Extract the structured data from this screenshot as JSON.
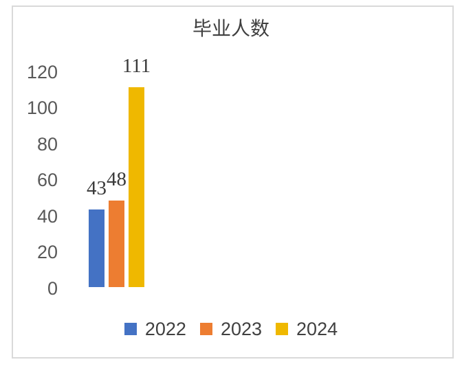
{
  "chart_data": {
    "type": "bar",
    "title": "毕业人数",
    "categories": [
      "2022",
      "2023",
      "2024"
    ],
    "series": [
      {
        "name": "2022",
        "value": 43,
        "color": "#4472C4"
      },
      {
        "name": "2023",
        "value": 48,
        "color": "#ED7D31"
      },
      {
        "name": "2024",
        "value": 111,
        "color": "#EFB800"
      }
    ],
    "data_labels": [
      "43",
      "48",
      "111"
    ],
    "xlabel": "",
    "ylabel": "",
    "ylim": [
      0,
      120
    ],
    "y_ticks": [
      120,
      100,
      80,
      60,
      40,
      20,
      0
    ],
    "grid": false,
    "axis_lines": false,
    "legend_position": "bottom",
    "legend_labels": [
      "2022",
      "2023",
      "2024"
    ],
    "colors": {
      "background": "#FFFFFF",
      "border": "#D9D9D9",
      "title_text": "#3F3F3F",
      "axis_text": "#595959",
      "data_label_text": "#3A3A3A",
      "legend_text": "#404040"
    }
  }
}
